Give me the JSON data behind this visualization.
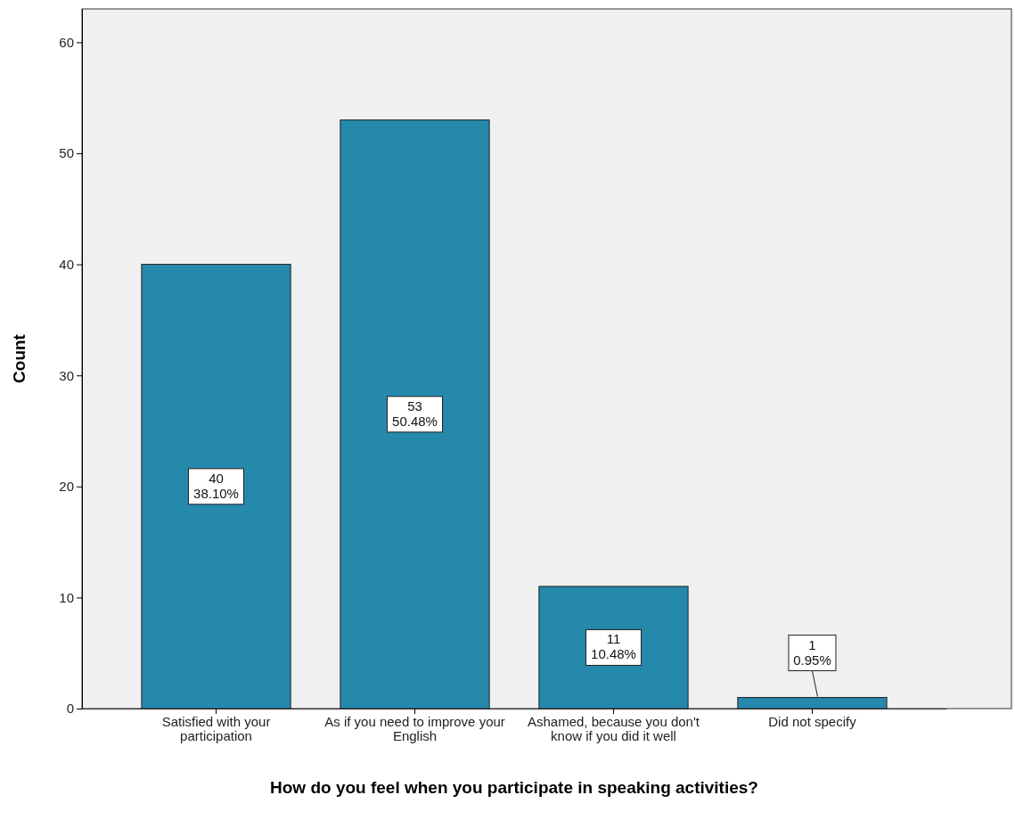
{
  "chart_data": {
    "type": "bar",
    "xlabel": "How do you feel when you participate in speaking activities?",
    "ylabel": "Count",
    "categories": [
      "Satisfied with your participation",
      "As if you need to improve your English",
      "Ashamed, because you don't know if you did it well",
      "Did not specify"
    ],
    "values": [
      40,
      53,
      11,
      1
    ],
    "value_labels": [
      "40\n38.10%",
      "53\n50.48%",
      "11\n10.48%",
      "1\n0.95%"
    ],
    "color": "#2589ab",
    "ylim": [
      0,
      63
    ],
    "yticks": [
      0,
      10,
      20,
      30,
      40,
      50,
      60
    ],
    "grid": false
  }
}
